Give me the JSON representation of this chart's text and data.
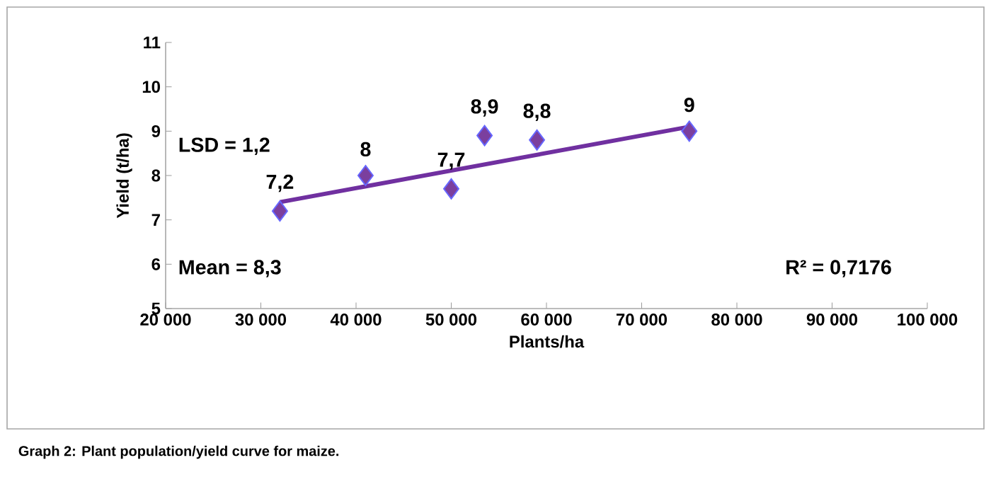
{
  "chart_data": {
    "type": "scatter",
    "xlabel": "Plants/ha",
    "ylabel": "Yield (t/ha)",
    "xlim": [
      20000,
      100000
    ],
    "ylim": [
      5,
      11
    ],
    "xticks": [
      {
        "value": 20000,
        "label": "20 000"
      },
      {
        "value": 30000,
        "label": "30 000"
      },
      {
        "value": 40000,
        "label": "40 000"
      },
      {
        "value": 50000,
        "label": "50 000"
      },
      {
        "value": 60000,
        "label": "60 000"
      },
      {
        "value": 70000,
        "label": "70 000"
      },
      {
        "value": 80000,
        "label": "80 000"
      },
      {
        "value": 90000,
        "label": "90 000"
      },
      {
        "value": 100000,
        "label": "100 000"
      }
    ],
    "yticks": [
      5,
      6,
      7,
      8,
      9,
      10,
      11
    ],
    "series": [
      {
        "color": "#7b3f9e",
        "marker": "diamond",
        "x": [
          32000,
          41000,
          50000,
          53500,
          59000,
          75000
        ],
        "values": [
          7.2,
          8,
          7.7,
          8.9,
          8.8,
          9
        ],
        "value_labels": [
          "7,2",
          "8",
          "7,7",
          "8,9",
          "8,8",
          "9"
        ]
      },
      {
        "type": "line",
        "color": "#7030a0",
        "marker": "none",
        "x": [
          32000,
          75000
        ],
        "values": [
          7.4,
          9.1
        ]
      }
    ],
    "annotations": [
      "LSD = 1,2",
      "Mean = 8,3",
      "R² = 0,7176",
      "Graph 2: Plant population/yield curve for maize."
    ]
  }
}
